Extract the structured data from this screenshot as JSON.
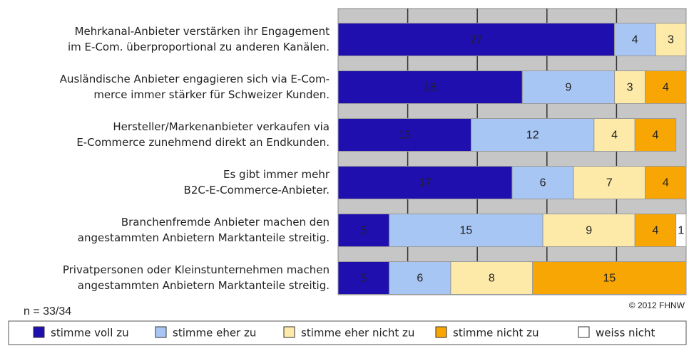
{
  "chart_data": {
    "type": "stacked_barh",
    "categories": [
      [
        "Mehrkanal-Anbieter verstärken ihr Engagement",
        "im E-Com. überproportional zu anderen Kanälen."
      ],
      [
        "Ausländische Anbieter engagieren sich via E-Com-",
        "merce immer stärker für Schweizer Kunden."
      ],
      [
        "Hersteller/Markenanbieter verkaufen via",
        "E-Commerce zunehmend direkt an Endkunden."
      ],
      [
        "Es gibt immer mehr",
        "B2C-E-Commerce-Anbieter."
      ],
      [
        "Branchenfremde Anbieter machen den",
        "angestammten Anbietern Marktanteile streitig."
      ],
      [
        "Privatpersonen oder Kleinstunternehmen machen",
        "angestammten Anbietern Marktanteile streitig."
      ]
    ],
    "series": [
      {
        "name": "stimme voll zu",
        "color": "#1f0fae",
        "values": [
          27,
          18,
          13,
          17,
          5,
          5
        ]
      },
      {
        "name": "stimme eher zu",
        "color": "#a8c6f4",
        "values": [
          4,
          9,
          12,
          6,
          15,
          6
        ]
      },
      {
        "name": "stimme eher nicht zu",
        "color": "#fdeaa9",
        "values": [
          3,
          3,
          4,
          7,
          9,
          8
        ]
      },
      {
        "name": "stimme nicht zu",
        "color": "#f8a603",
        "values": [
          null,
          4,
          4,
          4,
          4,
          15
        ]
      },
      {
        "name": "weiss nicht",
        "color": "#ffffff",
        "values": [
          null,
          null,
          null,
          null,
          1,
          null
        ]
      }
    ],
    "xlim": [
      0,
      34
    ],
    "xticks": [
      6.8,
      13.6,
      20.4,
      27.2
    ],
    "grid": true,
    "note": "n = 33/34",
    "source": "© 2012 FHNW"
  }
}
